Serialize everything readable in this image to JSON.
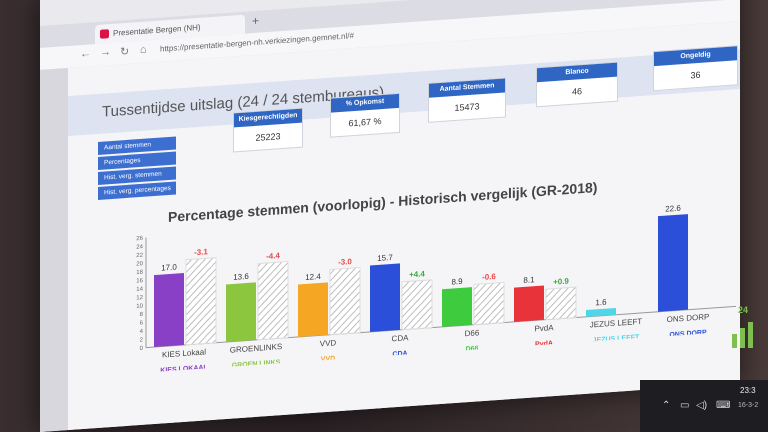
{
  "browser": {
    "tab_title": "Presentatie Bergen (NH)",
    "url": "https://presentatie-bergen-nh.verkiezingen.gemnet.nl/#"
  },
  "header": {
    "title": "Tussentijdse uitslag (24 / 24 stembureaus)"
  },
  "cards": [
    {
      "label": "Kiesgerechtigden",
      "value": "25223"
    },
    {
      "label": "% Opkomst",
      "value": "61,67 %"
    },
    {
      "label": "Aantal Stemmen",
      "value": "15473"
    },
    {
      "label": "Blanco",
      "value": "46"
    },
    {
      "label": "Ongeldig",
      "value": "36"
    }
  ],
  "toggles": [
    "Aantal stemmen",
    "Percentages",
    "Hist. verg. stemmen",
    "Hist. verg. percentages"
  ],
  "chart_data": {
    "type": "bar",
    "title": "Percentage stemmen (voorlopig) - Historisch vergelijk (GR-2018)",
    "categories": [
      "KIES Lokaal",
      "GROENLINKS",
      "VVD",
      "CDA",
      "D66",
      "PvdA",
      "JEZUS LEEFT",
      "ONS DORP"
    ],
    "values": [
      17.0,
      13.6,
      12.4,
      15.7,
      8.9,
      8.1,
      1.6,
      22.6
    ],
    "changes": [
      "-3.1",
      "-4.4",
      "-3.0",
      "+4.4",
      "-0.6",
      "+0.9",
      "",
      ""
    ],
    "colors": [
      "#8a3fc7",
      "#8cc63f",
      "#f5a623",
      "#2b4fd9",
      "#3ecb3e",
      "#e8333a",
      "#4fd6e8",
      "#2b4fd9"
    ],
    "change_colors": [
      "#e84a4a",
      "#e84a4a",
      "#e84a4a",
      "#3aa83a",
      "#e84a4a",
      "#3aa83a",
      "#e84a4a",
      "#e84a4a"
    ],
    "yticks": [
      0,
      2,
      4,
      6,
      8,
      10,
      12,
      14,
      16,
      18,
      20,
      22,
      24,
      26
    ],
    "ylim": [
      0,
      26
    ]
  },
  "logos": [
    "KIES LOKAAL",
    "GROEN LINKS",
    "VVD",
    "CDA",
    "D66",
    "PvdA",
    "JEZUS LEEFT",
    "ONS DORP"
  ],
  "taskbar": {
    "time": "23:3",
    "date": "16-3-2"
  },
  "side": {
    "number": "24"
  }
}
